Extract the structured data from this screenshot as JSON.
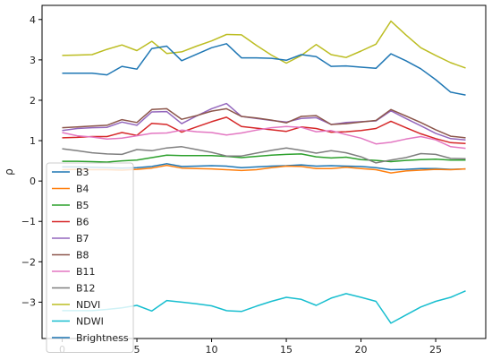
{
  "chart_data": {
    "type": "line",
    "title": "",
    "xlabel": "",
    "ylabel": "ρ",
    "xlim": [
      -1.35,
      28.35
    ],
    "ylim": [
      -3.9,
      4.35
    ],
    "xticks": [
      0,
      5,
      10,
      15,
      20,
      25
    ],
    "yticks": [
      -3,
      -2,
      -1,
      0,
      1,
      2,
      3,
      4
    ],
    "xtick_labels": [
      "0",
      "5",
      "10",
      "15",
      "20",
      "25"
    ],
    "ytick_labels": [
      "−3",
      "−2",
      "−1",
      "0",
      "1",
      "2",
      "3",
      "4"
    ],
    "grid": false,
    "legend_position": "lower-left",
    "x": [
      0,
      1,
      2,
      3,
      4,
      5,
      6,
      7,
      8,
      9,
      10,
      11,
      12,
      13,
      14,
      15,
      16,
      17,
      18,
      19,
      20,
      21,
      22,
      23,
      24,
      25,
      26,
      27
    ],
    "series": [
      {
        "name": "B3",
        "color": "#1f77b4",
        "values": [
          0.35,
          0.35,
          0.34,
          0.33,
          0.32,
          0.33,
          0.36,
          0.43,
          0.36,
          0.37,
          0.38,
          0.37,
          0.33,
          0.35,
          0.37,
          0.38,
          0.4,
          0.37,
          0.38,
          0.37,
          0.36,
          0.33,
          0.28,
          0.29,
          0.31,
          0.31,
          0.29,
          0.3
        ]
      },
      {
        "name": "B4",
        "color": "#ff7f0e",
        "values": [
          0.28,
          0.29,
          0.28,
          0.28,
          0.27,
          0.29,
          0.32,
          0.39,
          0.32,
          0.31,
          0.3,
          0.28,
          0.26,
          0.28,
          0.33,
          0.37,
          0.36,
          0.31,
          0.31,
          0.34,
          0.31,
          0.28,
          0.2,
          0.25,
          0.27,
          0.29,
          0.28,
          0.3
        ]
      },
      {
        "name": "B5",
        "color": "#2ca02c",
        "values": [
          0.49,
          0.49,
          0.48,
          0.47,
          0.5,
          0.52,
          0.58,
          0.64,
          0.63,
          0.63,
          0.63,
          0.61,
          0.58,
          0.61,
          0.64,
          0.66,
          0.67,
          0.6,
          0.57,
          0.59,
          0.53,
          0.51,
          0.48,
          0.51,
          0.53,
          0.54,
          0.52,
          0.52
        ]
      },
      {
        "name": "B6",
        "color": "#d62728",
        "values": [
          1.07,
          1.08,
          1.1,
          1.1,
          1.2,
          1.13,
          1.43,
          1.4,
          1.21,
          1.34,
          1.47,
          1.58,
          1.35,
          1.31,
          1.27,
          1.23,
          1.34,
          1.3,
          1.21,
          1.22,
          1.25,
          1.3,
          1.48,
          1.32,
          1.17,
          1.05,
          0.95,
          0.93
        ]
      },
      {
        "name": "B7",
        "color": "#9467bd",
        "values": [
          1.25,
          1.3,
          1.32,
          1.33,
          1.46,
          1.38,
          1.71,
          1.72,
          1.42,
          1.61,
          1.79,
          1.92,
          1.6,
          1.55,
          1.5,
          1.46,
          1.55,
          1.57,
          1.4,
          1.45,
          1.47,
          1.49,
          1.74,
          1.55,
          1.37,
          1.18,
          1.05,
          1.02
        ]
      },
      {
        "name": "B8",
        "color": "#8c564b",
        "values": [
          1.32,
          1.34,
          1.36,
          1.38,
          1.52,
          1.45,
          1.77,
          1.79,
          1.53,
          1.62,
          1.73,
          1.79,
          1.6,
          1.56,
          1.51,
          1.44,
          1.6,
          1.62,
          1.4,
          1.42,
          1.46,
          1.5,
          1.77,
          1.61,
          1.45,
          1.27,
          1.11,
          1.07
        ]
      },
      {
        "name": "B11",
        "color": "#e377c2",
        "values": [
          1.2,
          1.12,
          1.09,
          1.04,
          1.06,
          1.12,
          1.18,
          1.19,
          1.26,
          1.22,
          1.2,
          1.14,
          1.19,
          1.26,
          1.32,
          1.35,
          1.33,
          1.22,
          1.25,
          1.15,
          1.06,
          0.92,
          0.96,
          1.04,
          1.1,
          1.02,
          0.85,
          0.81
        ]
      },
      {
        "name": "B12",
        "color": "#7f7f7f",
        "values": [
          0.8,
          0.75,
          0.7,
          0.67,
          0.66,
          0.78,
          0.75,
          0.82,
          0.85,
          0.78,
          0.71,
          0.62,
          0.62,
          0.69,
          0.76,
          0.82,
          0.76,
          0.69,
          0.75,
          0.7,
          0.6,
          0.45,
          0.52,
          0.58,
          0.68,
          0.66,
          0.56,
          0.55
        ]
      },
      {
        "name": "NDVI",
        "color": "#bcbd22",
        "values": [
          3.11,
          3.12,
          3.13,
          3.26,
          3.37,
          3.23,
          3.46,
          3.16,
          3.2,
          3.34,
          3.47,
          3.63,
          3.62,
          3.36,
          3.12,
          2.92,
          3.11,
          3.38,
          3.13,
          3.06,
          3.22,
          3.39,
          3.96,
          3.62,
          3.3,
          3.11,
          2.93,
          2.8
        ]
      },
      {
        "name": "NDWI",
        "color": "#17becf",
        "values": [
          -3.21,
          -3.21,
          -3.21,
          -3.18,
          -3.14,
          -3.08,
          -3.22,
          -2.96,
          -3.0,
          -3.04,
          -3.09,
          -3.21,
          -3.23,
          -3.1,
          -2.98,
          -2.88,
          -2.93,
          -3.08,
          -2.9,
          -2.79,
          -2.88,
          -2.98,
          -3.52,
          -3.32,
          -3.12,
          -2.98,
          -2.88,
          -2.72
        ]
      },
      {
        "name": "Brightness",
        "color": "#1f77b4",
        "values": [
          2.67,
          2.67,
          2.67,
          2.63,
          2.84,
          2.77,
          3.28,
          3.34,
          2.98,
          3.14,
          3.3,
          3.4,
          3.05,
          3.05,
          3.04,
          2.99,
          3.13,
          3.08,
          2.84,
          2.85,
          2.82,
          2.79,
          3.15,
          2.98,
          2.78,
          2.51,
          2.2,
          2.13
        ]
      }
    ]
  }
}
